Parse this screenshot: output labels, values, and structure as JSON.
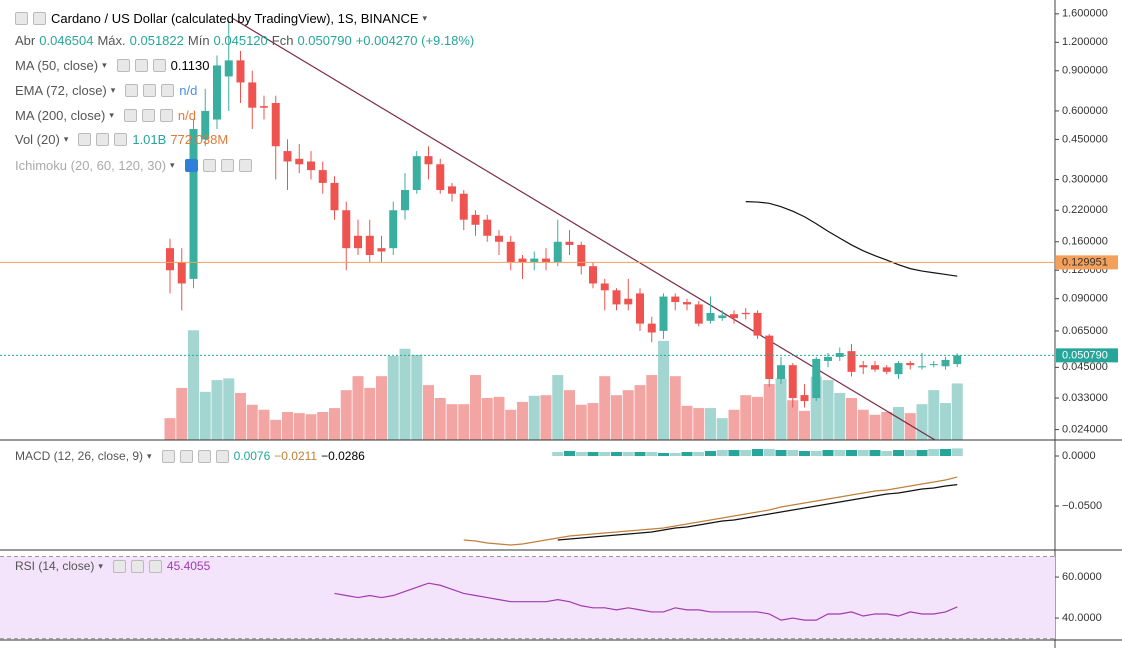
{
  "chart_data": [
    {
      "type": "candlestick",
      "legend": {
        "title": "Cardano / US Dollar (calculated by TradingView), 1S, BINANCE",
        "ohlc": [
          "Abr",
          "0.046504",
          "Máx.",
          "0.051822",
          "Mín",
          "0.045120",
          "Fch",
          "0.050790",
          "+0.004270 (+9.18%)"
        ],
        "ma50": [
          "MA (50, close)",
          "0.1130"
        ],
        "ema72": [
          "EMA (72, close)",
          "n/d"
        ],
        "ma200": [
          "MA (200, close)",
          "n/d"
        ],
        "vol": [
          "Vol (20)",
          "1.01B",
          "772.038M"
        ],
        "ichimoku": [
          "Ichimoku (20, 60, 120, 30)"
        ]
      },
      "colors": {
        "up": "#3aaf9f",
        "down": "#ef5350",
        "volume_up": "#a3d6d1",
        "volume_down": "#f3a5a4",
        "ma50": "#111111"
      },
      "log": true,
      "ylim": [
        0.0216,
        1.84
      ],
      "yticks": [
        {
          "value": 1.6,
          "label": "1.600000"
        },
        {
          "value": 1.2,
          "label": "1.200000"
        },
        {
          "value": 0.9,
          "label": "0.900000"
        },
        {
          "value": 0.6,
          "label": "0.600000"
        },
        {
          "value": 0.45,
          "label": "0.450000"
        },
        {
          "value": 0.3,
          "label": "0.300000"
        },
        {
          "value": 0.22,
          "label": "0.220000"
        },
        {
          "value": 0.16,
          "label": "0.160000"
        },
        {
          "value": 0.12,
          "label": "0.120000"
        },
        {
          "value": 0.09,
          "label": "0.090000"
        },
        {
          "value": 0.065,
          "label": "0.065000"
        },
        {
          "value": 0.045,
          "label": "0.045000"
        },
        {
          "value": 0.033,
          "label": "0.033000"
        },
        {
          "value": 0.024,
          "label": "0.024000"
        }
      ],
      "price_lines": [
        {
          "value": 0.129951,
          "label": "0.129951",
          "color": "#f5a05a"
        },
        {
          "value": 0.05079,
          "label": "0.050790",
          "color": "#26a69a"
        }
      ],
      "open": [
        0.15,
        0.13,
        0.11,
        0.45,
        0.55,
        0.85,
        1.0,
        0.8,
        0.63,
        0.65,
        0.4,
        0.37,
        0.36,
        0.33,
        0.29,
        0.22,
        0.17,
        0.17,
        0.15,
        0.15,
        0.22,
        0.27,
        0.38,
        0.35,
        0.28,
        0.26,
        0.21,
        0.2,
        0.17,
        0.16,
        0.135,
        0.13,
        0.135,
        0.13,
        0.16,
        0.155,
        0.125,
        0.105,
        0.098,
        0.09,
        0.095,
        0.07,
        0.065,
        0.092,
        0.087,
        0.085,
        0.072,
        0.074,
        0.077,
        0.078,
        0.078,
        0.062,
        0.04,
        0.046,
        0.034,
        0.033,
        0.048,
        0.05,
        0.053,
        0.046,
        0.046,
        0.045,
        0.042,
        0.047,
        0.045,
        0.046,
        0.0455,
        0.046504
      ],
      "high": [
        0.165,
        0.15,
        0.55,
        0.75,
        1.05,
        1.5,
        1.1,
        0.9,
        0.7,
        0.7,
        0.45,
        0.43,
        0.4,
        0.36,
        0.31,
        0.24,
        0.2,
        0.2,
        0.17,
        0.24,
        0.32,
        0.4,
        0.42,
        0.37,
        0.29,
        0.27,
        0.22,
        0.21,
        0.18,
        0.17,
        0.14,
        0.145,
        0.15,
        0.2,
        0.18,
        0.16,
        0.13,
        0.11,
        0.1,
        0.11,
        0.1,
        0.075,
        0.095,
        0.095,
        0.09,
        0.088,
        0.092,
        0.08,
        0.08,
        0.082,
        0.08,
        0.063,
        0.05,
        0.047,
        0.038,
        0.05,
        0.052,
        0.055,
        0.057,
        0.048,
        0.048,
        0.046,
        0.048,
        0.048,
        0.052,
        0.048,
        0.05,
        0.051822
      ],
      "low": [
        0.095,
        0.08,
        0.1,
        0.42,
        0.5,
        0.6,
        0.65,
        0.5,
        0.55,
        0.3,
        0.27,
        0.32,
        0.3,
        0.26,
        0.2,
        0.12,
        0.14,
        0.13,
        0.13,
        0.14,
        0.2,
        0.26,
        0.3,
        0.26,
        0.24,
        0.18,
        0.17,
        0.16,
        0.14,
        0.12,
        0.11,
        0.12,
        0.12,
        0.125,
        0.14,
        0.115,
        0.1,
        0.08,
        0.08,
        0.08,
        0.065,
        0.058,
        0.06,
        0.08,
        0.08,
        0.068,
        0.07,
        0.072,
        0.07,
        0.073,
        0.06,
        0.037,
        0.038,
        0.03,
        0.03,
        0.032,
        0.045,
        0.048,
        0.041,
        0.042,
        0.043,
        0.042,
        0.04,
        0.044,
        0.044,
        0.045,
        0.044,
        0.04512
      ],
      "close": [
        0.12,
        0.105,
        0.5,
        0.6,
        0.95,
        1.0,
        0.8,
        0.62,
        0.62,
        0.42,
        0.36,
        0.35,
        0.33,
        0.29,
        0.22,
        0.15,
        0.15,
        0.14,
        0.145,
        0.22,
        0.27,
        0.38,
        0.35,
        0.27,
        0.26,
        0.2,
        0.19,
        0.17,
        0.16,
        0.13,
        0.13,
        0.135,
        0.13,
        0.16,
        0.155,
        0.125,
        0.105,
        0.098,
        0.085,
        0.085,
        0.07,
        0.064,
        0.092,
        0.087,
        0.085,
        0.07,
        0.078,
        0.076,
        0.074,
        0.077,
        0.062,
        0.04,
        0.046,
        0.033,
        0.032,
        0.049,
        0.05,
        0.052,
        0.043,
        0.045,
        0.044,
        0.043,
        0.047,
        0.046,
        0.0455,
        0.0465,
        0.0485,
        0.05079
      ],
      "volume": [
        0.39,
        0.93,
        1.96,
        0.86,
        1.07,
        1.1,
        0.84,
        0.63,
        0.54,
        0.36,
        0.5,
        0.48,
        0.46,
        0.5,
        0.57,
        0.89,
        1.14,
        0.93,
        1.14,
        1.5,
        1.63,
        1.52,
        0.98,
        0.75,
        0.64,
        0.64,
        1.16,
        0.75,
        0.77,
        0.54,
        0.68,
        0.79,
        0.8,
        1.16,
        0.89,
        0.63,
        0.66,
        1.14,
        0.8,
        0.89,
        0.98,
        1.16,
        1.77,
        1.14,
        0.61,
        0.57,
        0.57,
        0.39,
        0.54,
        0.8,
        0.77,
        1.0,
        1.1,
        0.71,
        0.52,
        1.13,
        1.07,
        0.84,
        0.75,
        0.54,
        0.45,
        0.5,
        0.59,
        0.48,
        0.64,
        0.89,
        0.66,
        1.01
      ],
      "ma50": [
        null,
        null,
        null,
        null,
        null,
        null,
        null,
        null,
        null,
        null,
        null,
        null,
        null,
        null,
        null,
        null,
        null,
        null,
        null,
        null,
        null,
        null,
        null,
        null,
        null,
        null,
        null,
        null,
        null,
        null,
        null,
        null,
        null,
        null,
        null,
        null,
        null,
        null,
        null,
        null,
        null,
        null,
        null,
        null,
        null,
        null,
        null,
        null,
        null,
        0.24,
        0.239,
        0.236,
        0.228,
        0.218,
        0.206,
        0.192,
        0.178,
        0.166,
        0.155,
        0.146,
        0.139,
        0.133,
        0.127,
        0.122,
        0.119,
        0.117,
        0.115,
        0.113
      ]
    },
    {
      "type": "macd",
      "legend": [
        "MACD (12, 26, close, 9)",
        "0.0076",
        "−0.0211",
        "−0.0286"
      ],
      "ylim": [
        -0.094,
        0.016
      ],
      "yticks": [
        {
          "value": 0,
          "label": "0.0000"
        },
        {
          "value": -0.05,
          "label": "−0.0500"
        }
      ],
      "colors": {
        "macd": "#c0803a",
        "signal": "#111111",
        "histogram": [
          "#26a69a",
          "#a3d6d1"
        ]
      },
      "macd": [
        null,
        null,
        null,
        null,
        null,
        null,
        null,
        null,
        null,
        null,
        null,
        null,
        null,
        null,
        null,
        null,
        null,
        null,
        null,
        null,
        null,
        null,
        null,
        null,
        null,
        -0.084,
        -0.085,
        -0.087,
        -0.088,
        -0.089,
        -0.088,
        -0.086,
        -0.084,
        -0.082,
        -0.08,
        -0.079,
        -0.078,
        -0.077,
        -0.076,
        -0.075,
        -0.074,
        -0.073,
        -0.072,
        -0.07,
        -0.068,
        -0.066,
        -0.064,
        -0.062,
        -0.06,
        -0.058,
        -0.056,
        -0.054,
        -0.051,
        -0.049,
        -0.047,
        -0.045,
        -0.043,
        -0.041,
        -0.039,
        -0.037,
        -0.035,
        -0.034,
        -0.032,
        -0.03,
        -0.028,
        -0.026,
        -0.024,
        -0.0211
      ],
      "signal": [
        null,
        null,
        null,
        null,
        null,
        null,
        null,
        null,
        null,
        null,
        null,
        null,
        null,
        null,
        null,
        null,
        null,
        null,
        null,
        null,
        null,
        null,
        null,
        null,
        null,
        null,
        null,
        null,
        null,
        null,
        null,
        null,
        null,
        -0.084,
        -0.083,
        -0.082,
        -0.081,
        -0.08,
        -0.079,
        -0.078,
        -0.077,
        -0.076,
        -0.074,
        -0.072,
        -0.071,
        -0.069,
        -0.067,
        -0.065,
        -0.064,
        -0.062,
        -0.06,
        -0.058,
        -0.056,
        -0.054,
        -0.052,
        -0.05,
        -0.048,
        -0.046,
        -0.044,
        -0.042,
        -0.04,
        -0.038,
        -0.037,
        -0.035,
        -0.033,
        -0.032,
        -0.03,
        -0.0286
      ],
      "histogram": [
        null,
        null,
        null,
        null,
        null,
        null,
        null,
        null,
        null,
        null,
        null,
        null,
        null,
        null,
        null,
        null,
        null,
        null,
        null,
        null,
        null,
        null,
        null,
        null,
        null,
        null,
        null,
        null,
        null,
        null,
        null,
        null,
        null,
        0.004,
        0.005,
        0.004,
        0.004,
        0.004,
        0.004,
        0.004,
        0.004,
        0.004,
        0.003,
        0.003,
        0.004,
        0.004,
        0.005,
        0.006,
        0.006,
        0.006,
        0.007,
        0.007,
        0.006,
        0.006,
        0.005,
        0.005,
        0.006,
        0.006,
        0.006,
        0.006,
        0.006,
        0.005,
        0.006,
        0.006,
        0.006,
        0.007,
        0.007,
        0.0076
      ]
    },
    {
      "type": "rsi",
      "legend": [
        "RSI (14, close)",
        "45.4055"
      ],
      "ylim": [
        29.3,
        73.2
      ],
      "band": [
        30,
        70
      ],
      "yticks": [
        {
          "value": 60,
          "label": "60.0000"
        },
        {
          "value": 40,
          "label": "40.0000"
        }
      ],
      "color": "#a03bb0",
      "values": [
        null,
        null,
        null,
        null,
        null,
        null,
        null,
        null,
        null,
        null,
        null,
        null,
        null,
        null,
        52,
        51,
        50,
        51,
        50,
        51,
        53,
        55,
        57,
        56,
        54,
        52,
        51,
        50,
        49,
        48,
        48,
        48,
        48,
        49,
        48,
        46,
        45,
        45,
        44,
        45,
        44,
        43,
        43,
        45,
        44,
        44,
        43,
        43,
        43,
        43,
        43,
        42,
        39,
        40,
        39,
        39,
        42,
        42,
        43,
        41,
        42,
        42,
        41,
        43,
        42,
        42,
        43,
        45.4055
      ]
    }
  ]
}
